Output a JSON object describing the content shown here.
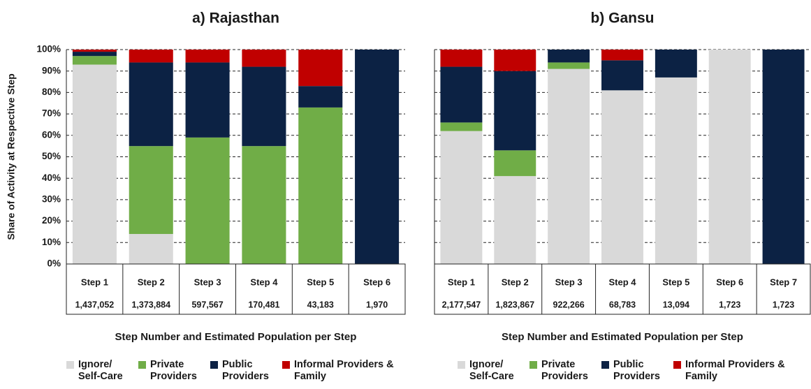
{
  "chart_data": [
    {
      "type": "bar",
      "stacked": true,
      "title": "a) Rajasthan",
      "ylabel": "Share of Activity at Respective Step",
      "xlabel": "Step Number and Estimated Population per Step",
      "categories": [
        "Step 1",
        "Step 2",
        "Step 3",
        "Step 4",
        "Step 5",
        "Step 6"
      ],
      "populations": [
        "1,437,052",
        "1,373,884",
        "597,567",
        "170,481",
        "43,183",
        "1,970"
      ],
      "series": [
        {
          "name": "Ignore/ Self-Care",
          "color": "#d9d9d9",
          "values": [
            93,
            14,
            0,
            0,
            0,
            0
          ]
        },
        {
          "name": "Private Providers",
          "color": "#70ad47",
          "values": [
            4,
            41,
            59,
            55,
            73,
            0
          ]
        },
        {
          "name": "Public Providers",
          "color": "#0c2244",
          "values": [
            2,
            39,
            35,
            37,
            10,
            100
          ]
        },
        {
          "name": "Informal Providers & Family",
          "color": "#c00000",
          "values": [
            1,
            6,
            6,
            8,
            17,
            0
          ]
        }
      ],
      "ylim": [
        0,
        100
      ],
      "yticks": [
        {
          "value": 0,
          "label": "0%"
        },
        {
          "value": 10,
          "label": "10%"
        },
        {
          "value": 20,
          "label": "20%"
        },
        {
          "value": 30,
          "label": "30%"
        },
        {
          "value": 40,
          "label": "40%"
        },
        {
          "value": 50,
          "label": "50%"
        },
        {
          "value": 60,
          "label": "60%"
        },
        {
          "value": 70,
          "label": "70%"
        },
        {
          "value": 80,
          "label": "80%"
        },
        {
          "value": 90,
          "label": "90%"
        },
        {
          "value": 100,
          "label": "100%"
        }
      ],
      "ytick_labels": true,
      "grid": true
    },
    {
      "type": "bar",
      "stacked": true,
      "title": "b) Gansu",
      "xlabel": "Step Number and Estimated Population per Step",
      "categories": [
        "Step 1",
        "Step 2",
        "Step 3",
        "Step 4",
        "Step 5",
        "Step 6",
        "Step 7"
      ],
      "populations": [
        "2,177,547",
        "1,823,867",
        "922,266",
        "68,783",
        "13,094",
        "1,723",
        "1,723"
      ],
      "series": [
        {
          "name": "Ignore/ Self-Care",
          "color": "#d9d9d9",
          "values": [
            62,
            41,
            91,
            81,
            87,
            100,
            0
          ]
        },
        {
          "name": "Private Providers",
          "color": "#70ad47",
          "values": [
            4,
            12,
            3,
            0,
            0,
            0,
            0
          ]
        },
        {
          "name": "Public Providers",
          "color": "#0c2244",
          "values": [
            26,
            37,
            6,
            14,
            13,
            0,
            100
          ]
        },
        {
          "name": "Informal Providers & Family",
          "color": "#c00000",
          "values": [
            8,
            10,
            0,
            5,
            0,
            0,
            0
          ]
        }
      ],
      "ylim": [
        0,
        100
      ],
      "yticks": [
        0,
        10,
        20,
        30,
        40,
        50,
        60,
        70,
        80,
        90,
        100
      ],
      "ytick_labels": false,
      "grid": true
    }
  ]
}
